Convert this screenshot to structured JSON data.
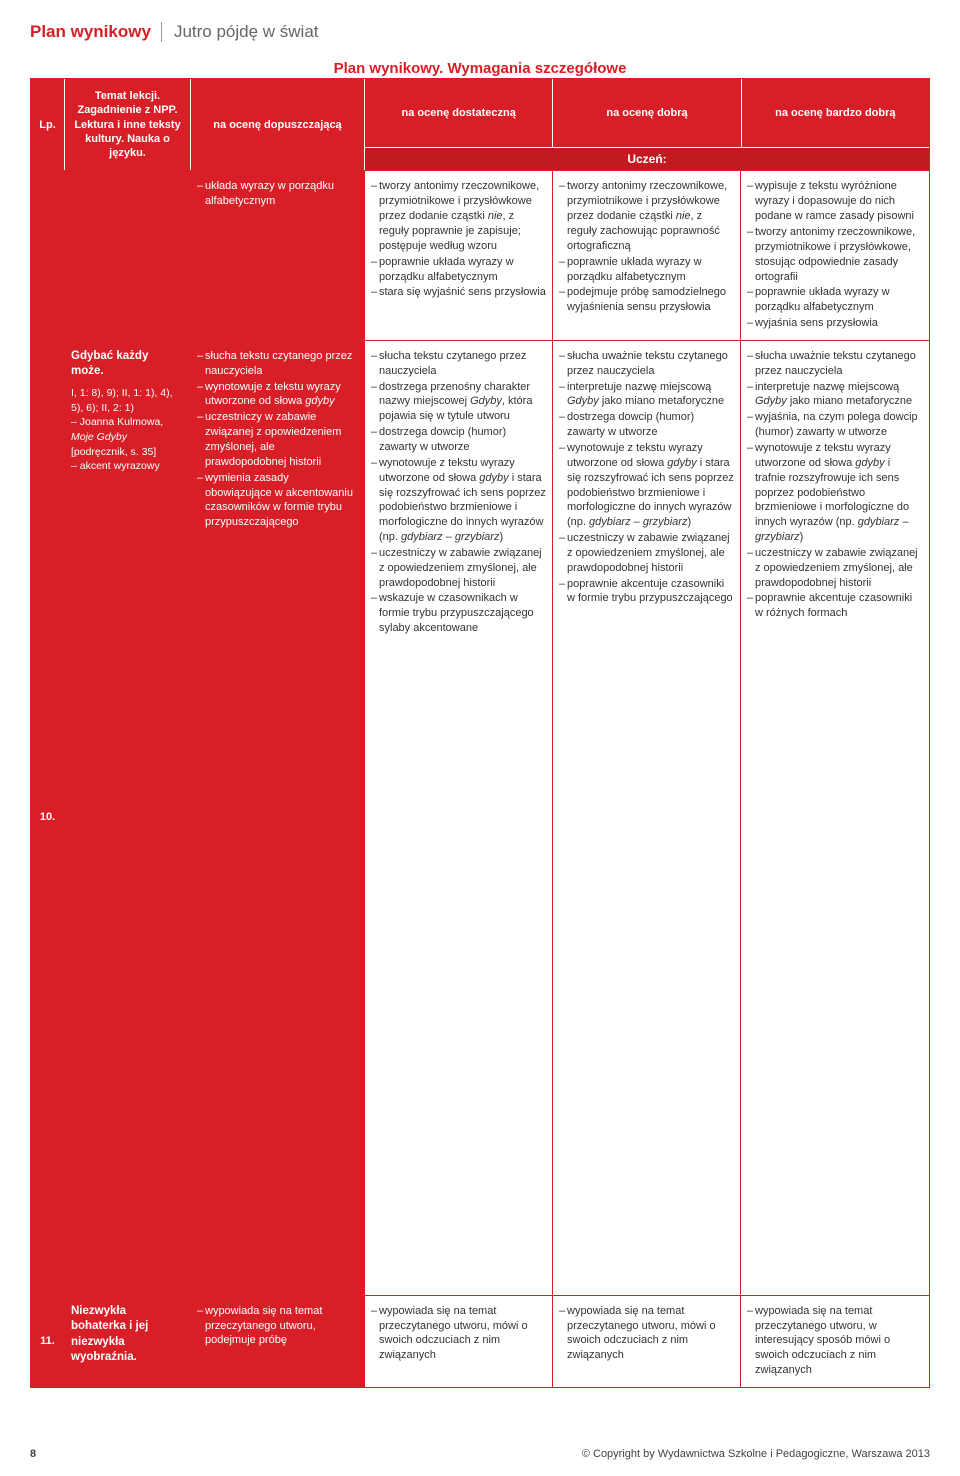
{
  "header": {
    "bold": "Plan wynikowy",
    "light": "Jutro pójdę w świat"
  },
  "topTitle": "Plan wynikowy. Wymagania szczegółowe",
  "columns": {
    "lp": "Lp.",
    "topic": "Temat lekcji. Zagadnienie z NPP. Lektura i inne teksty kultury. Nauka o języku.",
    "dop": "na ocenę dopuszczającą",
    "dst": "na ocenę dostateczną",
    "db": "na ocenę dobrą",
    "bdb": "na ocenę bardzo dobrą",
    "sub": "Uczeń:"
  },
  "rows": [
    {
      "lp": "",
      "topic": "",
      "dop": [
        "układa wyrazy w porządku alfabetycznym"
      ],
      "dst": [
        "tworzy antonimy rzeczownikowe, przymiotnikowe i przysłówkowe przez dodanie cząstki <span class='em'>nie</span>, z reguły poprawnie je zapisuje; postępuje według wzoru",
        "poprawnie układa wyrazy w porządku alfabetycznym",
        "stara się wyjaśnić sens przysłowia"
      ],
      "db": [
        "tworzy antonimy rzeczownikowe, przymiotnikowe i przysłówkowe przez dodanie cząstki <span class='em'>nie</span>, z reguły zachowując poprawność ortograficzną",
        "poprawnie układa wyrazy w porządku alfabetycznym",
        "podejmuje próbę samodzielnego wyjaśnienia sensu przysłowia"
      ],
      "bdb": [
        "wypisuje z tekstu wyróżnione wyrazy i dopasowuje do nich podane w ramce zasady pisowni",
        "tworzy antonimy rzeczownikowe, przymiotnikowe i przysłówkowe, stosując odpowiednie zasady ortografii",
        "poprawnie układa wyrazy w porządku alfabetycznym",
        "wyjaśnia sens przysłowia"
      ]
    },
    {
      "lp": "10.",
      "topicTitle": "Gdybać każdy może.",
      "topicSub": "I, 1: 8), 9); II, 1: 1), 4), 5), 6); II, 2: 1)<br>– Joanna Kulmowa, <span class='em'>Moje Gdyby</span><br>[podręcznik, s. 35]<br>– akcent wyrazowy",
      "dop": [
        "słucha tekstu czytanego przez nauczyciela",
        "wynotowuje z tekstu wyrazy utworzone od słowa <span class='em'>gdyby</span>",
        "uczestniczy w zabawie związanej z opowiedzeniem zmyślonej, ale prawdopodobnej historii",
        "wymienia zasady obowiązujące w akcentowaniu czasowników w formie trybu przypuszczającego"
      ],
      "dst": [
        "słucha tekstu czytanego przez nauczyciela",
        "dostrzega przenośny charakter nazwy miejscowej <span class='em'>Gdyby</span>, która pojawia się w tytule utworu",
        "dostrzega dowcip (humor) zawarty w utworze",
        "wynotowuje z tekstu wyrazy utworzone od słowa <span class='em'>gdyby</span> i stara się rozszyfrować ich sens poprzez podobieństwo brzmieniowe i morfologiczne do innych wyrazów (np. <span class='em'>gdybiarz – grzybiarz</span>)",
        "uczestniczy w zabawie związanej z opowiedzeniem zmyślonej, ale prawdopodobnej historii",
        "wskazuje w czasownikach w formie trybu przypuszczającego sylaby akcentowane"
      ],
      "db": [
        "słucha uważnie tekstu czytanego przez nauczyciela",
        "interpretuje nazwę miejscową <span class='em'>Gdyby</span> jako miano metaforyczne",
        "dostrzega dowcip (humor) zawarty w utworze",
        "wynotowuje z tekstu wyrazy utworzone od słowa <span class='em'>gdyby</span> i stara się rozszyfrować ich sens poprzez podobieństwo brzmieniowe i morfologiczne do innych wyrazów (np. <span class='em'>gdybiarz – grzybiarz</span>)",
        "uczestniczy w zabawie związanej z opowiedzeniem zmyślonej, ale prawdopodobnej historii",
        "poprawnie akcentuje czasowniki w formie trybu przypuszczającego"
      ],
      "bdb": [
        "słucha uważnie tekstu czytanego przez nauczyciela",
        "interpretuje nazwę miejscową <span class='em'>Gdyby</span> jako miano metaforyczne",
        "wyjaśnia, na czym polega dowcip (humor) zawarty w utworze",
        "wynotowuje z tekstu wyrazy utworzone od słowa <span class='em'>gdyby</span> i trafnie rozszyfrowuje ich sens poprzez podobieństwo brzmieniowe i morfologiczne do innych wyrazów (np. <span class='em'>gdybiarz – grzybiarz</span>)",
        "uczestniczy w zabawie związanej z opowiedzeniem zmyślonej, ale prawdopodobnej historii",
        "poprawnie akcentuje czasowniki w różnych formach"
      ]
    },
    {
      "lp": "11.",
      "topicTitle": "Niezwykła bohaterka i jej niezwykła wyobraźnia.",
      "dop": [
        "wypowiada się na temat przeczytanego utworu, podejmuje próbę"
      ],
      "dst": [
        "wypowiada się na temat przeczytanego utworu, mówi o swoich odczuciach z nim związanych"
      ],
      "db": [
        "wypowiada się na temat przeczytanego utworu, mówi o swoich odczuciach z nim związanych"
      ],
      "bdb": [
        "wypowiada się na temat przeczytanego utworu, w interesujący sposób mówi o swoich odczuciach z nim związanych"
      ]
    }
  ],
  "footer": {
    "page": "8",
    "copy": "Copyright by Wydawnictwa Szkolne i Pedagogiczne, Warszawa 2013"
  }
}
